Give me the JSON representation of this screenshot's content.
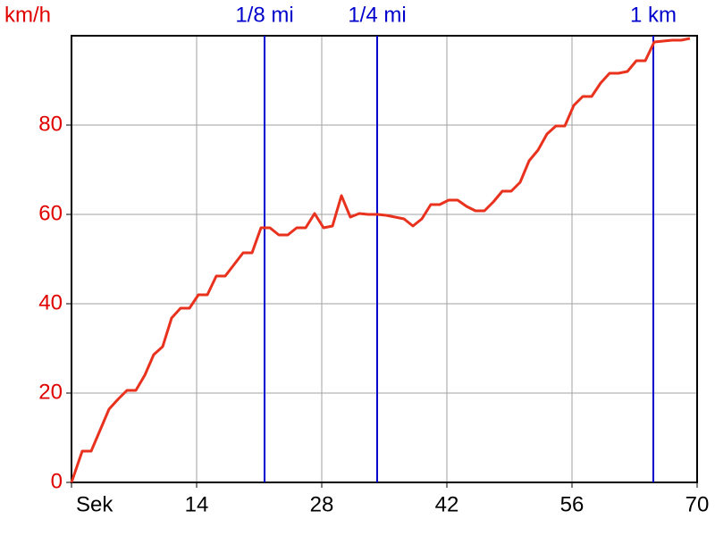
{
  "chart_data": {
    "type": "line",
    "y_unit": "km/h",
    "color": "#e8321e",
    "tick_color": "#e00000",
    "marker_color": "#0000cc",
    "grid": true,
    "xlim": [
      0,
      70
    ],
    "ylim": [
      0,
      100
    ],
    "xticks": [
      {
        "value": 0,
        "label": "Sek"
      },
      14,
      28,
      42,
      56,
      70
    ],
    "yticks": [
      0,
      20,
      40,
      60,
      80
    ],
    "markers": [
      {
        "label": "1/8 mi",
        "x": 21.6
      },
      {
        "label": "1/4 mi",
        "x": 34.2
      },
      {
        "label": "1 km",
        "x": 65.1
      }
    ],
    "x": [
      0,
      1.2,
      2.2,
      4.2,
      5.2,
      6.2,
      7.2,
      8.2,
      9.2,
      10.2,
      11.2,
      12.2,
      13.2,
      14.2,
      15.2,
      16.2,
      17.2,
      18.2,
      19.2,
      20.2,
      21.2,
      22.2,
      23.2,
      24.2,
      25.2,
      26.2,
      27.2,
      28.2,
      29.2,
      30.2,
      31.2,
      32.2,
      33.2,
      34.2,
      35.2,
      36.2,
      37.2,
      38.2,
      39.2,
      40.2,
      41.2,
      42.2,
      43.2,
      44.2,
      45.2,
      46.2,
      47.2,
      48.2,
      49.2,
      50.2,
      51.2,
      52.2,
      53.2,
      54.2,
      55.2,
      56.2,
      57.2,
      58.2,
      59.2,
      60.2,
      61.2,
      62.2,
      63.2,
      64.2,
      65.2,
      66.2,
      67.2,
      68.2,
      69.2
    ],
    "values": [
      0,
      7,
      7,
      16.4,
      18.6,
      20.6,
      20.6,
      24,
      28.6,
      30.4,
      36.8,
      39,
      39,
      42,
      42,
      46.2,
      46.2,
      48.8,
      51.4,
      51.4,
      57,
      57,
      55.4,
      55.4,
      57,
      57,
      60.2,
      57,
      57.4,
      64.2,
      59.4,
      60.2,
      60,
      60,
      59.8,
      59.4,
      59,
      57.4,
      59,
      62.2,
      62.2,
      63.2,
      63.2,
      61.8,
      60.8,
      60.8,
      62.8,
      65.2,
      65.2,
      67.2,
      72,
      74.4,
      78,
      79.8,
      79.8,
      84.4,
      86.4,
      86.4,
      89.4,
      91.6,
      91.6,
      92,
      94.4,
      94.4,
      98.6,
      98.8,
      99,
      99,
      99.4
    ]
  }
}
